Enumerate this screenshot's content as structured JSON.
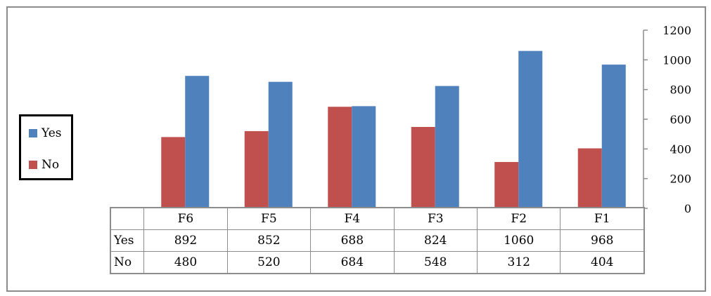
{
  "chart_data": {
    "type": "bar",
    "categories": [
      "F6",
      "F5",
      "F4",
      "F3",
      "F2",
      "F1"
    ],
    "series": [
      {
        "name": "Yes",
        "values": [
          892,
          852,
          688,
          824,
          1060,
          968
        ],
        "color": "#4f81bd"
      },
      {
        "name": "No",
        "values": [
          480,
          520,
          684,
          548,
          312,
          404
        ],
        "color": "#c0504d"
      }
    ],
    "ylim": [
      0,
      1200
    ],
    "yticks": [
      "0",
      "200",
      "400",
      "600",
      "800",
      "1000",
      "1200"
    ],
    "title": "",
    "xlabel": "",
    "ylabel": "",
    "y_axis_side": "right",
    "grid": false,
    "legend": "left",
    "data_table": true
  }
}
